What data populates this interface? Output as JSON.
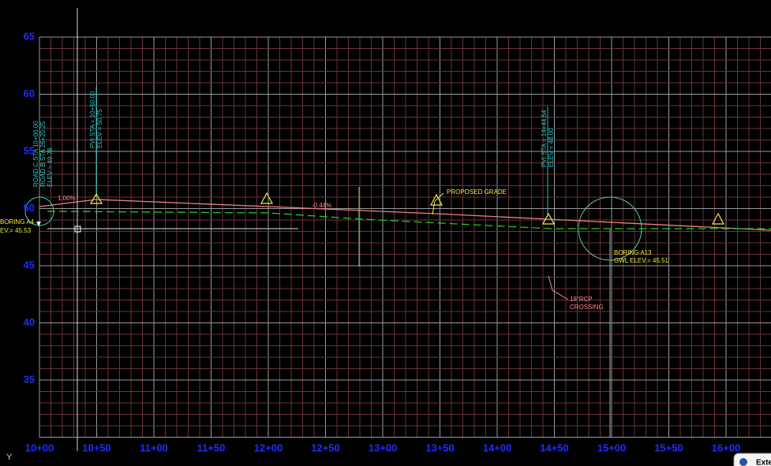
{
  "drawing": {
    "y_axis_labels": [
      "65",
      "60",
      "55",
      "50",
      "45",
      "40",
      "35"
    ],
    "x_axis_labels": [
      "10+00",
      "10+50",
      "11+00",
      "11+50",
      "12+00",
      "12+50",
      "13+00",
      "13+50",
      "14+00",
      "14+50",
      "15+00",
      "15+50",
      "16+00"
    ],
    "annotations": {
      "grade_left": "1.00%",
      "grade_right": "-0.44%",
      "proposed_grade": "PROPOSED GRADE",
      "boring_a4": "BORING A4",
      "boring_a4_elev": "EV.= 45.53",
      "boring_a13": "BORING A13",
      "boring_a13_elev": "GWL ELEV.= 45.51'",
      "rcp": "18\"RCP",
      "rcp_crossing": "CROSSING",
      "pvi1_sta": "PVI STA = 10+50.00",
      "pvi1_elev": "ELEV = 50.75",
      "pvi2_sta": "PVI STA = 14+44.54",
      "pvi2_elev": "ELEV = 48.00",
      "road_c": "ROAD C STA 10+00.00",
      "road_b": "ROAD B STA 26+20.25",
      "start_elev": "ELEV = 49.78"
    }
  },
  "statusbar": {
    "ucs_label": "Y",
    "tooltip": "Exte"
  }
}
